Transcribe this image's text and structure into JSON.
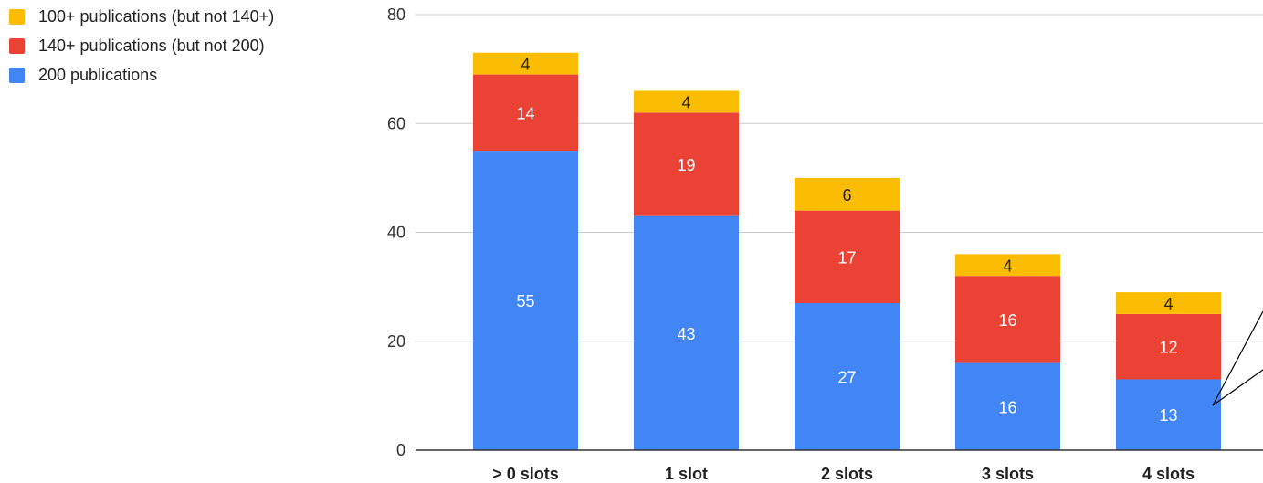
{
  "chart_data": {
    "type": "bar",
    "stacked": true,
    "categories": [
      "> 0 slots",
      "1 slot",
      "2 slots",
      "3 slots",
      "4 slots"
    ],
    "series": [
      {
        "name": "200 publications",
        "color": "#4285f4",
        "values": [
          55,
          43,
          27,
          16,
          13
        ]
      },
      {
        "name": "140+ publications (but not 200)",
        "color": "#ea4335",
        "values": [
          14,
          19,
          17,
          16,
          12
        ]
      },
      {
        "name": "100+ publications (but not 140+)",
        "color": "#fbbc04",
        "values": [
          4,
          4,
          6,
          4,
          4
        ]
      }
    ],
    "legend_order": [
      2,
      1,
      0
    ],
    "legend_position": "left",
    "ylim": [
      0,
      80
    ],
    "yticks": [
      "0",
      "20",
      "40",
      "60",
      "80"
    ],
    "grid": true,
    "title": "",
    "xlabel": "",
    "ylabel": ""
  }
}
